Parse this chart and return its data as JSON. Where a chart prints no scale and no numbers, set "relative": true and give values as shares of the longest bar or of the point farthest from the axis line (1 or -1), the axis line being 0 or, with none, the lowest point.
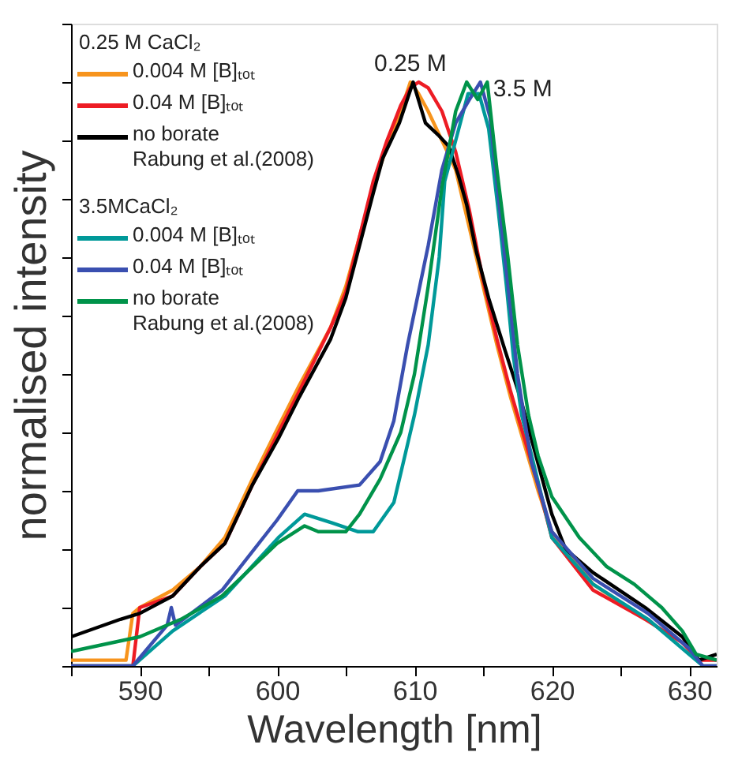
{
  "chart_data": {
    "type": "line",
    "relative": true,
    "xlabel": "Wavelength [nm]",
    "ylabel": "normalised intensity",
    "xlim": [
      585,
      632
    ],
    "xticks": [
      {
        "value": 585,
        "label": null
      },
      590,
      {
        "value": 595,
        "label": null
      },
      600,
      {
        "value": 605,
        "label": null
      },
      610,
      {
        "value": 615,
        "label": null
      },
      620,
      {
        "value": 625,
        "label": null
      },
      630
    ],
    "legend": "top left",
    "grid": false,
    "marker": "none",
    "line_style": "solid",
    "annotations": [
      "0.25 M",
      "3.5 M",
      "0.25 M CaCl₂",
      "3.5MCaCl₂"
    ],
    "series": [
      {
        "name": "0.004 M [B]ₜₒₜ",
        "color": "#f7941d",
        "x": [
          585,
          589,
          589.5,
          590,
          592.4,
          594.4,
          596.2,
          598.2,
          600.1,
          601.6,
          603.9,
          605,
          607,
          608,
          609,
          609.7,
          610.3,
          611,
          612,
          613,
          614,
          615,
          616,
          617,
          618,
          619,
          620,
          623,
          626.8
        ],
        "values": [
          0.01,
          0.01,
          0.09,
          0.1,
          0.13,
          0.17,
          0.22,
          0.32,
          0.41,
          0.48,
          0.58,
          0.65,
          0.82,
          0.89,
          0.95,
          1.0,
          0.98,
          0.95,
          0.9,
          0.85,
          0.75,
          0.65,
          0.55,
          0.46,
          0.38,
          0.3,
          0.23,
          0.14,
          0.08
        ]
      },
      {
        "name": "0.04 M [B]ₜₒₜ",
        "color": "#ed1c24",
        "x": [
          585,
          589.5,
          590,
          592.4,
          594.4,
          596.2,
          598.2,
          600.1,
          601.6,
          603.9,
          605,
          607,
          608,
          609,
          609.7,
          610.3,
          611,
          612,
          613,
          614,
          615,
          616,
          617,
          618,
          619,
          620,
          623,
          626.8,
          629.5,
          630.7,
          632
        ],
        "values": [
          0,
          0,
          0.1,
          0.12,
          0.17,
          0.21,
          0.31,
          0.4,
          0.47,
          0.58,
          0.64,
          0.83,
          0.9,
          0.96,
          0.99,
          1.0,
          0.99,
          0.95,
          0.88,
          0.78,
          0.66,
          0.56,
          0.47,
          0.39,
          0.31,
          0.22,
          0.13,
          0.08,
          0.04,
          0.01,
          0.01
        ]
      },
      {
        "name": "no borate\nRabung et al.(2008)",
        "color": "#000000",
        "x": [
          585,
          588.6,
          590,
          592.4,
          594.4,
          596.2,
          598.2,
          600.1,
          601.6,
          603.9,
          605,
          607,
          607.7,
          608.9,
          609.9,
          610.8,
          611.7,
          612.5,
          613.2,
          613.8,
          614.5,
          615.4,
          616.6,
          617.7,
          618.5,
          620,
          621,
          623,
          626.8,
          629.5,
          630.7,
          632
        ],
        "values": [
          0.05,
          0.08,
          0.09,
          0.12,
          0.17,
          0.21,
          0.31,
          0.39,
          0.46,
          0.56,
          0.63,
          0.81,
          0.87,
          0.93,
          1.0,
          0.93,
          0.91,
          0.89,
          0.84,
          0.79,
          0.71,
          0.63,
          0.54,
          0.46,
          0.39,
          0.26,
          0.2,
          0.16,
          0.1,
          0.05,
          0.01,
          0.02
        ]
      },
      {
        "name": "0.004 M [B]ₜₒₜ",
        "color": "#009999",
        "x": [
          585,
          589.5,
          592.4,
          596.2,
          600.1,
          602,
          604,
          605.9,
          607,
          608.5,
          610,
          611,
          611.8,
          612.2,
          613,
          613.9,
          614.7,
          615.4,
          616.1,
          616.7,
          617.2,
          617.8,
          620,
          623,
          627,
          630,
          631,
          632
        ],
        "values": [
          0,
          0,
          0.06,
          0.12,
          0.22,
          0.26,
          0.245,
          0.23,
          0.23,
          0.28,
          0.43,
          0.55,
          0.7,
          0.83,
          0.9,
          0.98,
          0.98,
          0.92,
          0.78,
          0.65,
          0.53,
          0.43,
          0.22,
          0.14,
          0.08,
          0.02,
          0,
          0
        ]
      },
      {
        "name": "0.04 M [B]ₜₒₜ",
        "color": "#3a4fb0",
        "x": [
          585,
          589.5,
          592,
          592.3,
          592.6,
          596,
          600,
          601.5,
          603,
          606,
          607.5,
          608.5,
          609.5,
          611,
          612,
          613,
          614,
          614.8,
          615.5,
          616.5,
          617.5,
          618.5,
          620,
          623,
          627,
          630,
          631,
          632
        ],
        "values": [
          0,
          0,
          0.07,
          0.1,
          0.07,
          0.13,
          0.25,
          0.3,
          0.3,
          0.31,
          0.35,
          0.42,
          0.55,
          0.72,
          0.85,
          0.93,
          0.97,
          1.0,
          0.94,
          0.72,
          0.5,
          0.35,
          0.23,
          0.15,
          0.09,
          0.03,
          0,
          0
        ]
      },
      {
        "name": "no borate\nRabung et al.(2008)",
        "color": "#00934a",
        "x": [
          585,
          590,
          593,
          596,
          600,
          602,
          603,
          605,
          606,
          607.5,
          609,
          610,
          611,
          612,
          613,
          613.8,
          614.6,
          615.3,
          616,
          616.8,
          617.5,
          618.3,
          619,
          620,
          622,
          624,
          626,
          628,
          629.5,
          630.5,
          632
        ],
        "values": [
          0.025,
          0.05,
          0.08,
          0.12,
          0.21,
          0.24,
          0.23,
          0.23,
          0.26,
          0.32,
          0.4,
          0.5,
          0.65,
          0.82,
          0.95,
          1.0,
          0.97,
          1.0,
          0.85,
          0.7,
          0.55,
          0.43,
          0.36,
          0.29,
          0.22,
          0.17,
          0.14,
          0.1,
          0.06,
          0.02,
          0.01
        ]
      }
    ]
  }
}
